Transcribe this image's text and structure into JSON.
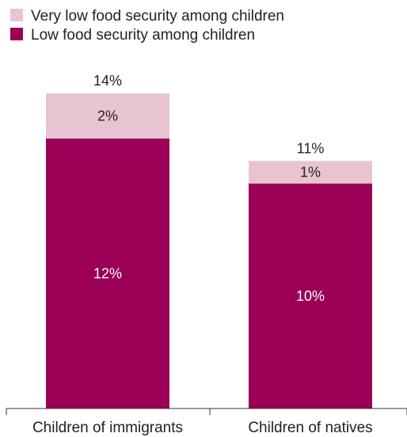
{
  "chart_data": {
    "type": "bar",
    "stacked": true,
    "categories": [
      "Children of immigrants",
      "Children of natives"
    ],
    "series": [
      {
        "name": "Low food security among children",
        "values": [
          12,
          10
        ],
        "labels": [
          "12%",
          "10%"
        ],
        "color": "#9b0056",
        "label_color": "#ffffff"
      },
      {
        "name": "Very low food security among children",
        "values": [
          2,
          1
        ],
        "labels": [
          "2%",
          "1%"
        ],
        "color": "#e8c4d2",
        "label_color": "#222222"
      }
    ],
    "totals": [
      14,
      11
    ],
    "total_labels": [
      "14%",
      "11%"
    ],
    "legend_order": [
      "Very low food security among children",
      "Low food security among children"
    ],
    "legend_position": "top-left",
    "ylim": [
      0,
      14
    ],
    "grid": false,
    "title": "",
    "xlabel": "",
    "ylabel": ""
  }
}
